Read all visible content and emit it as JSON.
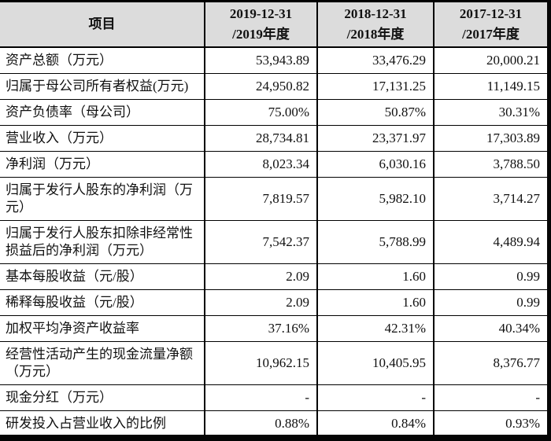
{
  "table": {
    "header": {
      "item_label": "项目",
      "periods": [
        {
          "line1": "2019-12-31",
          "line2": "/2019年度"
        },
        {
          "line1": "2018-12-31",
          "line2": "/2018年度"
        },
        {
          "line1": "2017-12-31",
          "line2": "/2017年度"
        }
      ]
    },
    "rows": [
      {
        "label": "资产总额（万元）",
        "values": [
          "53,943.89",
          "33,476.29",
          "20,000.21"
        ]
      },
      {
        "label": "归属于母公司所有者权益(万元)",
        "values": [
          "24,950.82",
          "17,131.25",
          "11,149.15"
        ]
      },
      {
        "label": "资产负债率（母公司）",
        "values": [
          "75.00%",
          "50.87%",
          "30.31%"
        ]
      },
      {
        "label": "营业收入（万元）",
        "values": [
          "28,734.81",
          "23,371.97",
          "17,303.89"
        ]
      },
      {
        "label": "净利润（万元）",
        "values": [
          "8,023.34",
          "6,030.16",
          "3,788.50"
        ]
      },
      {
        "label": "归属于发行人股东的净利润（万元）",
        "values": [
          "7,819.57",
          "5,982.10",
          "3,714.27"
        ]
      },
      {
        "label": "归属于发行人股东扣除非经常性损益后的净利润（万元）",
        "values": [
          "7,542.37",
          "5,788.99",
          "4,489.94"
        ]
      },
      {
        "label": "基本每股收益（元/股）",
        "values": [
          "2.09",
          "1.60",
          "0.99"
        ]
      },
      {
        "label": "稀释每股收益（元/股）",
        "values": [
          "2.09",
          "1.60",
          "0.99"
        ]
      },
      {
        "label": "加权平均净资产收益率",
        "values": [
          "37.16%",
          "42.31%",
          "40.34%"
        ]
      },
      {
        "label": "经营性活动产生的现金流量净额（万元）",
        "values": [
          "10,962.15",
          "10,405.95",
          "8,376.77"
        ]
      },
      {
        "label": "现金分红（万元）",
        "values": [
          "-",
          "-",
          "-"
        ]
      },
      {
        "label": "研发投入占营业收入的比例",
        "values": [
          "0.88%",
          "0.84%",
          "0.93%"
        ]
      }
    ],
    "colors": {
      "header_bg": "#dcdcdc",
      "border": "#000000",
      "text": "#101010",
      "edge_strip": "#050505"
    }
  }
}
